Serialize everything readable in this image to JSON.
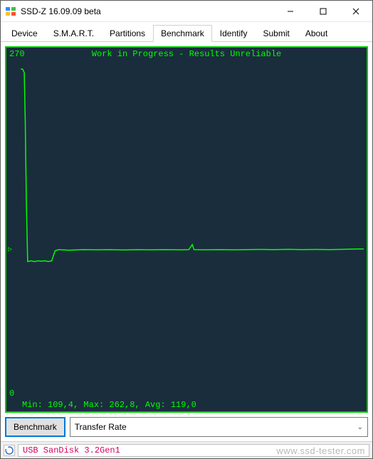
{
  "window": {
    "title": "SSD-Z 16.09.09 beta"
  },
  "tabs": [
    {
      "label": "Device",
      "active": false
    },
    {
      "label": "S.M.A.R.T.",
      "active": false
    },
    {
      "label": "Partitions",
      "active": false
    },
    {
      "label": "Benchmark",
      "active": true
    },
    {
      "label": "Identify",
      "active": false
    },
    {
      "label": "Submit",
      "active": false
    },
    {
      "label": "About",
      "active": false
    }
  ],
  "chart": {
    "type": "line",
    "title": "Work in Progress - Results Unreliable",
    "background_color": "#1a2d3d",
    "border_color": "#00cc00",
    "line_color": "#00ff00",
    "text_color": "#00ff00",
    "font_family": "Consolas",
    "font_size": 12,
    "ylim": [
      0,
      270
    ],
    "ytick_top": "270",
    "ytick_bottom": "0",
    "marker_y_value": 119,
    "x_range": [
      0,
      100
    ],
    "series": [
      [
        0,
        262.8
      ],
      [
        0.5,
        262.8
      ],
      [
        1,
        260
      ],
      [
        1.3,
        220
      ],
      [
        1.6,
        160
      ],
      [
        2,
        109.4
      ],
      [
        3,
        110
      ],
      [
        4,
        109.4
      ],
      [
        5,
        110
      ],
      [
        6,
        109.8
      ],
      [
        7,
        110
      ],
      [
        8,
        109.5
      ],
      [
        9,
        110
      ],
      [
        10,
        118
      ],
      [
        11,
        119
      ],
      [
        14,
        118.5
      ],
      [
        18,
        119
      ],
      [
        22,
        118.8
      ],
      [
        26,
        119
      ],
      [
        30,
        118.7
      ],
      [
        34,
        119
      ],
      [
        38,
        118.9
      ],
      [
        42,
        119
      ],
      [
        46,
        118.8
      ],
      [
        49,
        119
      ],
      [
        50,
        123
      ],
      [
        50.5,
        119
      ],
      [
        54,
        118.9
      ],
      [
        58,
        119
      ],
      [
        62,
        118.8
      ],
      [
        66,
        119
      ],
      [
        70,
        119.1
      ],
      [
        74,
        119
      ],
      [
        78,
        119.2
      ],
      [
        82,
        119
      ],
      [
        86,
        119.1
      ],
      [
        90,
        119
      ],
      [
        94,
        119.2
      ],
      [
        98,
        119.5
      ],
      [
        100,
        119.5
      ]
    ],
    "stats_line": "Min: 109,4, Max: 262,8, Avg: 119,0",
    "stats": {
      "min": "109,4",
      "max": "262,8",
      "avg": "119,0"
    }
  },
  "controls": {
    "benchmark_button": "Benchmark",
    "dropdown_selected": "Transfer Rate"
  },
  "status": {
    "device_text": "USB SanDisk 3.2Gen1",
    "device_text_color": "#d40060"
  },
  "watermark": "www.ssd-tester.com"
}
